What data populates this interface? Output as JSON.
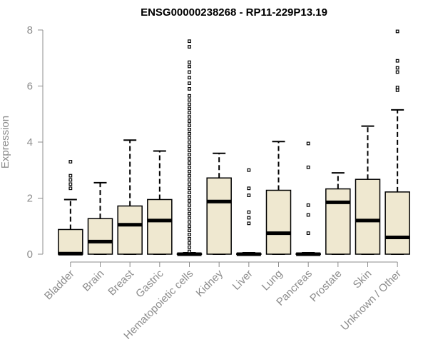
{
  "chart_data": {
    "type": "boxplot",
    "title": "ENSG00000238268 - RP11-229P13.19",
    "xlabel": "",
    "ylabel": "Expression",
    "ylim": [
      0,
      8
    ],
    "yticks": [
      0,
      2,
      4,
      6,
      8
    ],
    "box_color": "#efe8d0",
    "categories": [
      "Bladder",
      "Brain",
      "Breast",
      "Gastric",
      "Hematopoietic cells",
      "Kidney",
      "Liver",
      "Lung",
      "Pancreas",
      "Prostate",
      "Skin",
      "Unknown / Other"
    ],
    "boxes": [
      {
        "name": "Bladder",
        "whisker_low": 0,
        "q1": 0,
        "median": 0.02,
        "q3": 0.88,
        "whisker_high": 1.95,
        "outliers": [
          2.35,
          2.5,
          2.65,
          2.8,
          3.3
        ]
      },
      {
        "name": "Brain",
        "whisker_low": 0,
        "q1": 0,
        "median": 0.45,
        "q3": 1.27,
        "whisker_high": 2.55,
        "outliers": []
      },
      {
        "name": "Breast",
        "whisker_low": 0,
        "q1": 0,
        "median": 1.05,
        "q3": 1.72,
        "whisker_high": 4.07,
        "outliers": []
      },
      {
        "name": "Gastric",
        "whisker_low": 0,
        "q1": 0,
        "median": 1.2,
        "q3": 1.95,
        "whisker_high": 3.68,
        "outliers": []
      },
      {
        "name": "Hematopoietic cells",
        "whisker_low": 0,
        "q1": 0,
        "median": 0,
        "q3": 0.02,
        "whisker_high": 0.05,
        "outliers": [
          0.1,
          0.25,
          0.4,
          0.55,
          0.7,
          0.85,
          1.0,
          1.15,
          1.3,
          1.45,
          1.6,
          1.75,
          1.9,
          2.05,
          2.2,
          2.35,
          2.5,
          2.65,
          2.8,
          2.95,
          3.1,
          3.25,
          3.4,
          3.55,
          3.7,
          3.85,
          4.0,
          4.15,
          4.3,
          4.45,
          4.6,
          4.75,
          4.9,
          5.05,
          5.2,
          5.35,
          5.5,
          5.65,
          5.9,
          6.1,
          6.3,
          6.5,
          6.7,
          6.85,
          7.4,
          7.6
        ]
      },
      {
        "name": "Kidney",
        "whisker_low": 0,
        "q1": 0,
        "median": 1.88,
        "q3": 2.72,
        "whisker_high": 3.6,
        "outliers": []
      },
      {
        "name": "Liver",
        "whisker_low": 0,
        "q1": 0,
        "median": 0,
        "q3": 0.02,
        "whisker_high": 0.05,
        "outliers": [
          1.1,
          1.3,
          1.5,
          2.1,
          2.35,
          3.0
        ]
      },
      {
        "name": "Lung",
        "whisker_low": 0,
        "q1": 0,
        "median": 0.75,
        "q3": 2.28,
        "whisker_high": 4.02,
        "outliers": []
      },
      {
        "name": "Pancreas",
        "whisker_low": 0,
        "q1": 0,
        "median": 0,
        "q3": 0.02,
        "whisker_high": 0.05,
        "outliers": [
          0.75,
          1.4,
          1.75,
          3.1,
          3.95
        ]
      },
      {
        "name": "Prostate",
        "whisker_low": 0,
        "q1": 0,
        "median": 1.85,
        "q3": 2.33,
        "whisker_high": 2.9,
        "outliers": []
      },
      {
        "name": "Skin",
        "whisker_low": 0,
        "q1": 0,
        "median": 1.2,
        "q3": 2.67,
        "whisker_high": 4.57,
        "outliers": []
      },
      {
        "name": "Unknown / Other",
        "whisker_low": 0,
        "q1": 0,
        "median": 0.6,
        "q3": 2.22,
        "whisker_high": 5.15,
        "outliers": [
          5.85,
          5.95,
          6.5,
          6.65,
          6.9,
          7.95
        ]
      }
    ]
  }
}
